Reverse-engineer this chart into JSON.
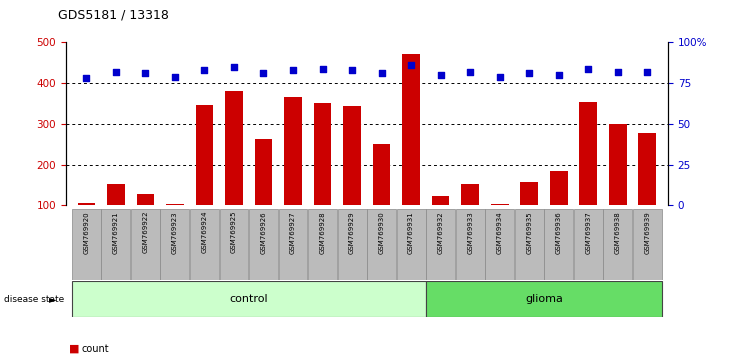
{
  "title": "GDS5181 / 13318",
  "samples": [
    "GSM769920",
    "GSM769921",
    "GSM769922",
    "GSM769923",
    "GSM769924",
    "GSM769925",
    "GSM769926",
    "GSM769927",
    "GSM769928",
    "GSM769929",
    "GSM769930",
    "GSM769931",
    "GSM769932",
    "GSM769933",
    "GSM769934",
    "GSM769935",
    "GSM769936",
    "GSM769937",
    "GSM769938",
    "GSM769939"
  ],
  "counts": [
    105,
    152,
    128,
    103,
    347,
    382,
    263,
    365,
    352,
    345,
    250,
    472,
    122,
    152,
    103,
    158,
    185,
    355,
    300,
    278
  ],
  "percentile_ranks": [
    78,
    82,
    81,
    79,
    83,
    85,
    81,
    83,
    84,
    83,
    81,
    86,
    80,
    82,
    79,
    81,
    80,
    84,
    82,
    82
  ],
  "group_labels": [
    "control",
    "glioma"
  ],
  "group_ranges": [
    [
      0,
      11
    ],
    [
      12,
      19
    ]
  ],
  "group_colors": [
    "#ccffcc",
    "#66dd66"
  ],
  "bar_color": "#cc0000",
  "dot_color": "#0000cc",
  "ylim_left": [
    100,
    500
  ],
  "ylim_right": [
    0,
    100
  ],
  "yticks_left": [
    100,
    200,
    300,
    400,
    500
  ],
  "yticks_right": [
    0,
    25,
    50,
    75,
    100
  ],
  "ytick_labels_right": [
    "0",
    "25",
    "50",
    "75",
    "100%"
  ],
  "grid_values": [
    200,
    300,
    400
  ],
  "bg_color": "#ffffff",
  "tick_label_area_color": "#bbbbbb"
}
